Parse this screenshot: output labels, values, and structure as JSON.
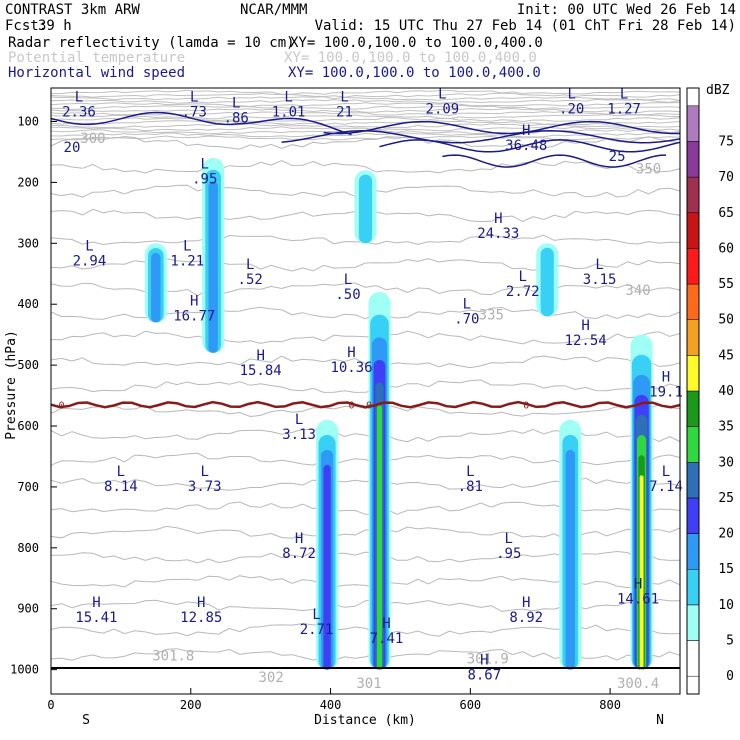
{
  "header": {
    "model": "CONTRAST  3km ARW",
    "center": "NCAR/MMM",
    "init": "Init: 00 UTC Wed 26 Feb 14",
    "fcst_label": "Fcst:",
    "fcst_value": "39 h",
    "valid": "Valid: 15 UTC Thu 27 Feb 14 (01 ChT Fri 28 Feb 14)",
    "fields": [
      {
        "name": "Radar reflectivity (lamda = 10 cm)",
        "xy": "XY= 100.0,100.0 to 100.0,400.0",
        "color": "#000000"
      },
      {
        "name": "Potential temperature",
        "xy": "XY= 100.0,100.0 to 100.0,400.0",
        "color": "#c8c8c8"
      },
      {
        "name": "Horizontal wind speed",
        "xy": "XY= 100.0,100.0 to 100.0,400.0",
        "color": "#1a1a8c"
      }
    ]
  },
  "chart_data": {
    "type": "cross-section",
    "xlabel": "Distance (km)",
    "ylabel": "Pressure (hPa)",
    "xlim": [
      0,
      900
    ],
    "ylim": [
      1040,
      45
    ],
    "x_ticks": [
      0,
      200,
      400,
      600,
      800
    ],
    "y_ticks": [
      100,
      200,
      300,
      400,
      500,
      600,
      700,
      800,
      900,
      1000
    ],
    "end_labels": {
      "left": "S",
      "right": "N"
    },
    "colorbar": {
      "unit": "dBZ",
      "levels": [
        0,
        5,
        10,
        15,
        20,
        25,
        30,
        35,
        40,
        45,
        50,
        55,
        60,
        65,
        70,
        75
      ],
      "colors": [
        "#ffffff",
        "#9ffff5",
        "#39d0f5",
        "#2f9af5",
        "#3f3ff5",
        "#2e70b8",
        "#30d840",
        "#1a9a1a",
        "#fffa2a",
        "#f5a020",
        "#ff6a1a",
        "#ff1a1a",
        "#c81414",
        "#a03050",
        "#8a3a9a",
        "#b07ac0"
      ]
    },
    "freezing_level_label": "0",
    "high_low_labels": [
      {
        "type": "L",
        "value": "2.36",
        "x": 40,
        "p": 85
      },
      {
        "type": "L",
        "value": ".73",
        "x": 205,
        "p": 85
      },
      {
        "type": "L",
        "value": ".86",
        "x": 265,
        "p": 95
      },
      {
        "type": "L",
        "value": "1.01",
        "x": 340,
        "p": 85
      },
      {
        "type": "L",
        "value": "21",
        "x": 420,
        "p": 85
      },
      {
        "type": "L",
        "value": "2.09",
        "x": 560,
        "p": 80
      },
      {
        "type": "L",
        "value": ".20",
        "x": 745,
        "p": 80
      },
      {
        "type": "L",
        "value": "1.27",
        "x": 820,
        "p": 80
      },
      {
        "type": "H",
        "value": "36.48",
        "x": 680,
        "p": 140
      },
      {
        "type": "L",
        "value": ".95",
        "x": 220,
        "p": 195
      },
      {
        "type": "H",
        "value": "24.33",
        "x": 640,
        "p": 285
      },
      {
        "type": "L",
        "value": "2.94",
        "x": 55,
        "p": 330
      },
      {
        "type": "L",
        "value": "1.21",
        "x": 195,
        "p": 330
      },
      {
        "type": "L",
        "value": ".52",
        "x": 285,
        "p": 360
      },
      {
        "type": "L",
        "value": ".50",
        "x": 425,
        "p": 385
      },
      {
        "type": "L",
        "value": "2.72",
        "x": 675,
        "p": 380
      },
      {
        "type": "L",
        "value": "3.15",
        "x": 785,
        "p": 360
      },
      {
        "type": "H",
        "value": "16.77",
        "x": 205,
        "p": 420
      },
      {
        "type": "L",
        "value": ".70",
        "x": 595,
        "p": 425
      },
      {
        "type": "H",
        "value": "12.54",
        "x": 765,
        "p": 460
      },
      {
        "type": "H",
        "value": "15.84",
        "x": 300,
        "p": 510
      },
      {
        "type": "H",
        "value": "10.36",
        "x": 430,
        "p": 505
      },
      {
        "type": "H",
        "value": "19.1",
        "x": 880,
        "p": 545
      },
      {
        "type": "L",
        "value": "3.13",
        "x": 355,
        "p": 615
      },
      {
        "type": "L",
        "value": "8.14",
        "x": 100,
        "p": 700
      },
      {
        "type": "L",
        "value": "3.73",
        "x": 220,
        "p": 700
      },
      {
        "type": "L",
        "value": ".81",
        "x": 600,
        "p": 700
      },
      {
        "type": "L",
        "value": "7.14",
        "x": 880,
        "p": 700
      },
      {
        "type": "H",
        "value": "8.72",
        "x": 355,
        "p": 810
      },
      {
        "type": "L",
        "value": ".95",
        "x": 655,
        "p": 810
      },
      {
        "type": "H",
        "value": "15.41",
        "x": 65,
        "p": 915
      },
      {
        "type": "H",
        "value": "12.85",
        "x": 215,
        "p": 915
      },
      {
        "type": "L",
        "value": "2.71",
        "x": 380,
        "p": 935
      },
      {
        "type": "H",
        "value": "7.41",
        "x": 480,
        "p": 950
      },
      {
        "type": "H",
        "value": "8.92",
        "x": 680,
        "p": 915
      },
      {
        "type": "H",
        "value": "14.61",
        "x": 840,
        "p": 885
      },
      {
        "type": "H",
        "value": "8.67",
        "x": 620,
        "p": 1010
      }
    ],
    "theta_labels": [
      {
        "value": "300",
        "x": 60,
        "p": 135
      },
      {
        "value": "350",
        "x": 855,
        "p": 185
      },
      {
        "value": "340",
        "x": 840,
        "p": 385
      },
      {
        "value": "335",
        "x": 630,
        "p": 425
      },
      {
        "value": "301.8",
        "x": 175,
        "p": 985
      },
      {
        "value": "302",
        "x": 315,
        "p": 1020
      },
      {
        "value": "301",
        "x": 455,
        "p": 1030
      },
      {
        "value": "301.9",
        "x": 625,
        "p": 990
      },
      {
        "value": "300.4",
        "x": 840,
        "p": 1030
      }
    ],
    "wind_labels": [
      {
        "value": "20",
        "x": 30,
        "p": 150
      },
      {
        "value": "25",
        "x": 810,
        "p": 165
      }
    ],
    "reflectivity_cells": [
      {
        "x": 150,
        "p_top": 300,
        "p_bot": 430,
        "max_dbz": 15
      },
      {
        "x": 232,
        "p_top": 160,
        "p_bot": 480,
        "max_dbz": 15
      },
      {
        "x": 450,
        "p_top": 180,
        "p_bot": 300,
        "max_dbz": 10
      },
      {
        "x": 395,
        "p_top": 590,
        "p_bot": 1000,
        "max_dbz": 20
      },
      {
        "x": 470,
        "p_top": 380,
        "p_bot": 1000,
        "max_dbz": 30
      },
      {
        "x": 710,
        "p_top": 300,
        "p_bot": 420,
        "max_dbz": 10
      },
      {
        "x": 743,
        "p_top": 590,
        "p_bot": 1000,
        "max_dbz": 15
      },
      {
        "x": 845,
        "p_top": 450,
        "p_bot": 1000,
        "max_dbz": 40
      }
    ]
  }
}
